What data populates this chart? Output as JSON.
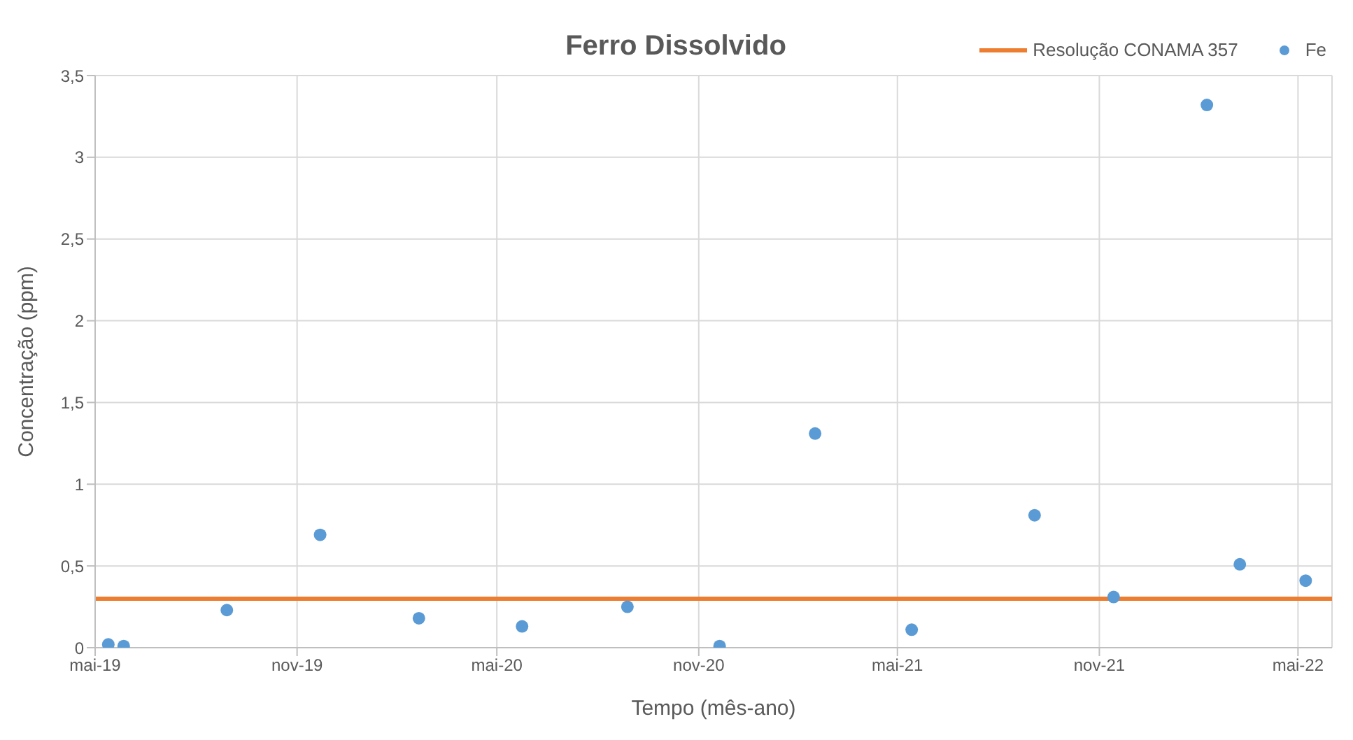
{
  "chart_data": {
    "type": "scatter",
    "title": "Ferro Dissolvido",
    "xlabel": "Tempo (mês-ano)",
    "ylabel": "Concentração (ppm)",
    "x": [
      "2019-05-13",
      "2019-05-27",
      "2019-08-29",
      "2019-11-22",
      "2020-02-20",
      "2020-05-24",
      "2020-08-28",
      "2020-11-20",
      "2021-02-15",
      "2021-05-14",
      "2021-09-03",
      "2021-11-14",
      "2022-02-07",
      "2022-03-09",
      "2022-05-08"
    ],
    "series": [
      {
        "name": "Fe",
        "color": "#5b9bd5",
        "values": [
          0.02,
          0.01,
          0.23,
          0.69,
          0.18,
          0.13,
          0.25,
          0.01,
          1.31,
          0.11,
          0.81,
          0.31,
          3.32,
          0.51,
          0.41
        ]
      }
    ],
    "ref_lines": [
      {
        "axis": "y",
        "value": 0.3,
        "label": "Resolução CONAMA 357",
        "color": "#ed7d31"
      }
    ],
    "xlim": [
      "2019-05-01",
      "2022-06-01"
    ],
    "xticks": [
      {
        "value": "2019-05-01",
        "label": "mai-19"
      },
      {
        "value": "2019-11-01",
        "label": "nov-19"
      },
      {
        "value": "2020-05-01",
        "label": "mai-20"
      },
      {
        "value": "2020-11-01",
        "label": "nov-20"
      },
      {
        "value": "2021-05-01",
        "label": "mai-21"
      },
      {
        "value": "2021-11-01",
        "label": "nov-21"
      },
      {
        "value": "2022-05-01",
        "label": "mai-22"
      }
    ],
    "ylim": [
      0,
      3.5
    ],
    "yticks": [
      0,
      {
        "value": 0.5,
        "label": "0,5"
      },
      1,
      {
        "value": 1.5,
        "label": "1,5"
      },
      2,
      {
        "value": 2.5,
        "label": "2,5"
      },
      3,
      {
        "value": 3.5,
        "label": "3,5"
      }
    ],
    "grid": true,
    "legend": "top right",
    "marker": "circle"
  }
}
